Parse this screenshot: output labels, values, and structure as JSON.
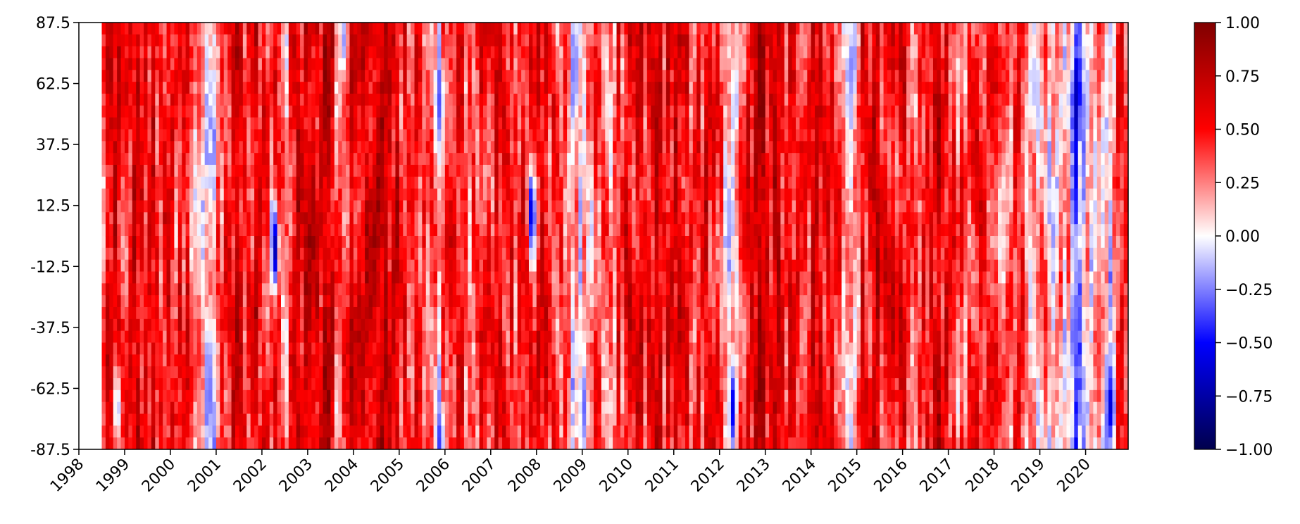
{
  "chart_data": {
    "type": "heatmap",
    "title": "",
    "xlabel": "",
    "ylabel": "",
    "x_ticks": [
      "1998",
      "1999",
      "2000",
      "2001",
      "2002",
      "2003",
      "2004",
      "2005",
      "2006",
      "2007",
      "2008",
      "2009",
      "2010",
      "2011",
      "2012",
      "2013",
      "2014",
      "2015",
      "2016",
      "2017",
      "2018",
      "2019",
      "2020"
    ],
    "xlim": [
      1998.0,
      2020.93
    ],
    "data_x_start": 1998.5,
    "y_ticks": [
      "87.5",
      "62.5",
      "37.5",
      "12.5",
      "-12.5",
      "-37.5",
      "-62.5",
      "-87.5"
    ],
    "ylim": [
      -87.5,
      87.5
    ],
    "colormap": "seismic",
    "colorbar": {
      "ticks": [
        "1.00",
        "0.75",
        "0.50",
        "0.25",
        "0.00",
        "−0.25",
        "−0.50",
        "−0.75",
        "−1.00"
      ],
      "range": [
        -1.0,
        1.0
      ],
      "colors": [
        "#00004c",
        "#0000ff",
        "#ffffff",
        "#ff0000",
        "#800000"
      ]
    },
    "grid": false,
    "column_profile": [
      [
        1998.5,
        0.35
      ],
      [
        1998.7,
        0.55
      ],
      [
        1998.9,
        0.45
      ],
      [
        1999.1,
        0.6
      ],
      [
        1999.3,
        0.5
      ],
      [
        1999.5,
        0.55
      ],
      [
        1999.7,
        0.45
      ],
      [
        1999.9,
        0.6
      ],
      [
        2000.1,
        0.4
      ],
      [
        2000.3,
        0.5
      ],
      [
        2000.5,
        0.3
      ],
      [
        2000.7,
        0.15
      ],
      [
        2000.85,
        -0.1
      ],
      [
        2001.0,
        0.45
      ],
      [
        2001.2,
        0.55
      ],
      [
        2001.4,
        0.6
      ],
      [
        2001.6,
        0.4
      ],
      [
        2001.8,
        0.55
      ],
      [
        2002.0,
        0.45
      ],
      [
        2002.15,
        0.3
      ],
      [
        2002.3,
        0.5
      ],
      [
        2002.5,
        0.15
      ],
      [
        2002.7,
        0.55
      ],
      [
        2002.9,
        0.6
      ],
      [
        2003.1,
        0.55
      ],
      [
        2003.3,
        0.65
      ],
      [
        2003.5,
        0.5
      ],
      [
        2003.7,
        0.3
      ],
      [
        2003.85,
        0.45
      ],
      [
        2004.0,
        0.65
      ],
      [
        2004.2,
        0.6
      ],
      [
        2004.4,
        0.7
      ],
      [
        2004.6,
        0.65
      ],
      [
        2004.8,
        0.6
      ],
      [
        2005.0,
        0.55
      ],
      [
        2005.2,
        0.5
      ],
      [
        2005.4,
        0.45
      ],
      [
        2005.6,
        0.3
      ],
      [
        2005.8,
        0.1
      ],
      [
        2006.0,
        0.35
      ],
      [
        2006.2,
        0.5
      ],
      [
        2006.4,
        0.45
      ],
      [
        2006.6,
        0.35
      ],
      [
        2006.8,
        0.5
      ],
      [
        2007.0,
        0.45
      ],
      [
        2007.2,
        0.6
      ],
      [
        2007.4,
        0.4
      ],
      [
        2007.6,
        0.5
      ],
      [
        2007.8,
        0.3
      ],
      [
        2008.0,
        0.45
      ],
      [
        2008.2,
        0.55
      ],
      [
        2008.4,
        0.3
      ],
      [
        2008.6,
        0.2
      ],
      [
        2008.8,
        0.1
      ],
      [
        2009.0,
        0.05
      ],
      [
        2009.2,
        0.3
      ],
      [
        2009.4,
        0.45
      ],
      [
        2009.6,
        0.2
      ],
      [
        2009.8,
        0.45
      ],
      [
        2010.0,
        0.55
      ],
      [
        2010.2,
        0.6
      ],
      [
        2010.4,
        0.5
      ],
      [
        2010.6,
        0.55
      ],
      [
        2010.8,
        0.45
      ],
      [
        2011.0,
        0.6
      ],
      [
        2011.2,
        0.5
      ],
      [
        2011.4,
        0.45
      ],
      [
        2011.6,
        0.55
      ],
      [
        2011.8,
        0.4
      ],
      [
        2012.0,
        0.3
      ],
      [
        2012.2,
        0.05
      ],
      [
        2012.4,
        0.35
      ],
      [
        2012.6,
        0.65
      ],
      [
        2012.8,
        0.7
      ],
      [
        2013.0,
        0.65
      ],
      [
        2013.2,
        0.6
      ],
      [
        2013.4,
        0.55
      ],
      [
        2013.6,
        0.6
      ],
      [
        2013.8,
        0.5
      ],
      [
        2014.0,
        0.55
      ],
      [
        2014.2,
        0.6
      ],
      [
        2014.4,
        0.45
      ],
      [
        2014.6,
        0.35
      ],
      [
        2014.8,
        0.1
      ],
      [
        2015.0,
        0.4
      ],
      [
        2015.2,
        0.55
      ],
      [
        2015.4,
        0.6
      ],
      [
        2015.6,
        0.5
      ],
      [
        2015.8,
        0.55
      ],
      [
        2016.0,
        0.45
      ],
      [
        2016.2,
        0.3
      ],
      [
        2016.4,
        0.4
      ],
      [
        2016.6,
        0.55
      ],
      [
        2016.8,
        0.6
      ],
      [
        2017.0,
        0.45
      ],
      [
        2017.2,
        0.35
      ],
      [
        2017.4,
        0.45
      ],
      [
        2017.6,
        0.55
      ],
      [
        2017.8,
        0.45
      ],
      [
        2018.0,
        0.3
      ],
      [
        2018.2,
        0.35
      ],
      [
        2018.4,
        0.45
      ],
      [
        2018.6,
        0.35
      ],
      [
        2018.8,
        0.2
      ],
      [
        2019.0,
        0.25
      ],
      [
        2019.2,
        0.15
      ],
      [
        2019.4,
        0.3
      ],
      [
        2019.6,
        0.05
      ],
      [
        2019.75,
        -0.45
      ],
      [
        2019.9,
        -0.1
      ],
      [
        2020.1,
        0.15
      ],
      [
        2020.3,
        0.3
      ],
      [
        2020.5,
        0.05
      ],
      [
        2020.7,
        0.4
      ],
      [
        2020.9,
        0.3
      ]
    ],
    "anomalies": [
      {
        "x": 2002.25,
        "y": -5,
        "value": -0.7
      },
      {
        "x": 2005.85,
        "y": 55,
        "value": -0.35
      },
      {
        "x": 2005.85,
        "y": -85,
        "value": -0.4
      },
      {
        "x": 2007.85,
        "y": 10,
        "value": -0.6
      },
      {
        "x": 2008.8,
        "y": 70,
        "value": -0.25
      },
      {
        "x": 2012.25,
        "y": -70,
        "value": -0.55
      },
      {
        "x": 2012.3,
        "y": 55,
        "value": -0.2
      },
      {
        "x": 2014.85,
        "y": 70,
        "value": -0.25
      },
      {
        "x": 2019.75,
        "y": 55,
        "value": -0.7
      },
      {
        "x": 2019.7,
        "y": -40,
        "value": -0.35
      },
      {
        "x": 2020.5,
        "y": -70,
        "value": -0.6
      },
      {
        "x": 2000.8,
        "y": -60,
        "value": -0.3
      },
      {
        "x": 1998.8,
        "y": -70,
        "value": -0.2
      },
      {
        "x": 2003.75,
        "y": 80,
        "value": -0.2
      },
      {
        "x": 2018.8,
        "y": 60,
        "value": -0.15
      },
      {
        "x": 2009.0,
        "y": -70,
        "value": -0.3
      }
    ]
  }
}
